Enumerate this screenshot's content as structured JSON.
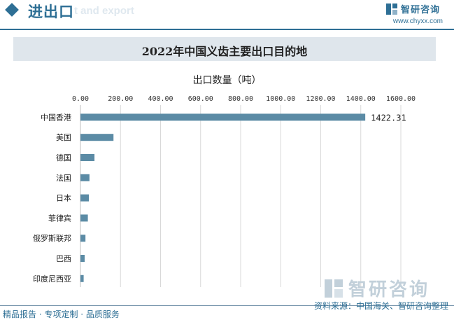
{
  "header": {
    "title": "进出口",
    "subtitle": "t and export",
    "brand_name": "智研咨询",
    "brand_url": "www.chyxx.com"
  },
  "chart_title": "2022年中国义齿主要出口目的地",
  "footer": {
    "left": "精品报告 · 专项定制 · 品质服务",
    "right": "资料来源：中国海关、智研咨询整理"
  },
  "watermark": "智研咨询",
  "colors": {
    "bar": "#5b8ba5",
    "accent": "#2e6f95",
    "title_bg": "#dfe6ec"
  },
  "chart_data": {
    "type": "bar",
    "orientation": "horizontal",
    "title": "2022年中国义齿主要出口目的地",
    "ylabel": "出口数量（吨）",
    "categories": [
      "中国香港",
      "美国",
      "德国",
      "法国",
      "日本",
      "菲律宾",
      "俄罗斯联邦",
      "巴西",
      "印度尼西亚"
    ],
    "values": [
      1422.31,
      165,
      70,
      45,
      42,
      37,
      25,
      21,
      16
    ],
    "data_labels": [
      "1422.31",
      "",
      "",
      "",
      "",
      "",
      "",
      "",
      ""
    ],
    "tick_labels": [
      "0.00",
      "200.00",
      "400.00",
      "600.00",
      "800.00",
      "1000.00",
      "1200.00",
      "1400.00",
      "1600.00"
    ],
    "xlim": [
      0,
      1600
    ],
    "ticks": [
      0,
      200,
      400,
      600,
      800,
      1000,
      1200,
      1400,
      1600
    ],
    "grid": true
  }
}
